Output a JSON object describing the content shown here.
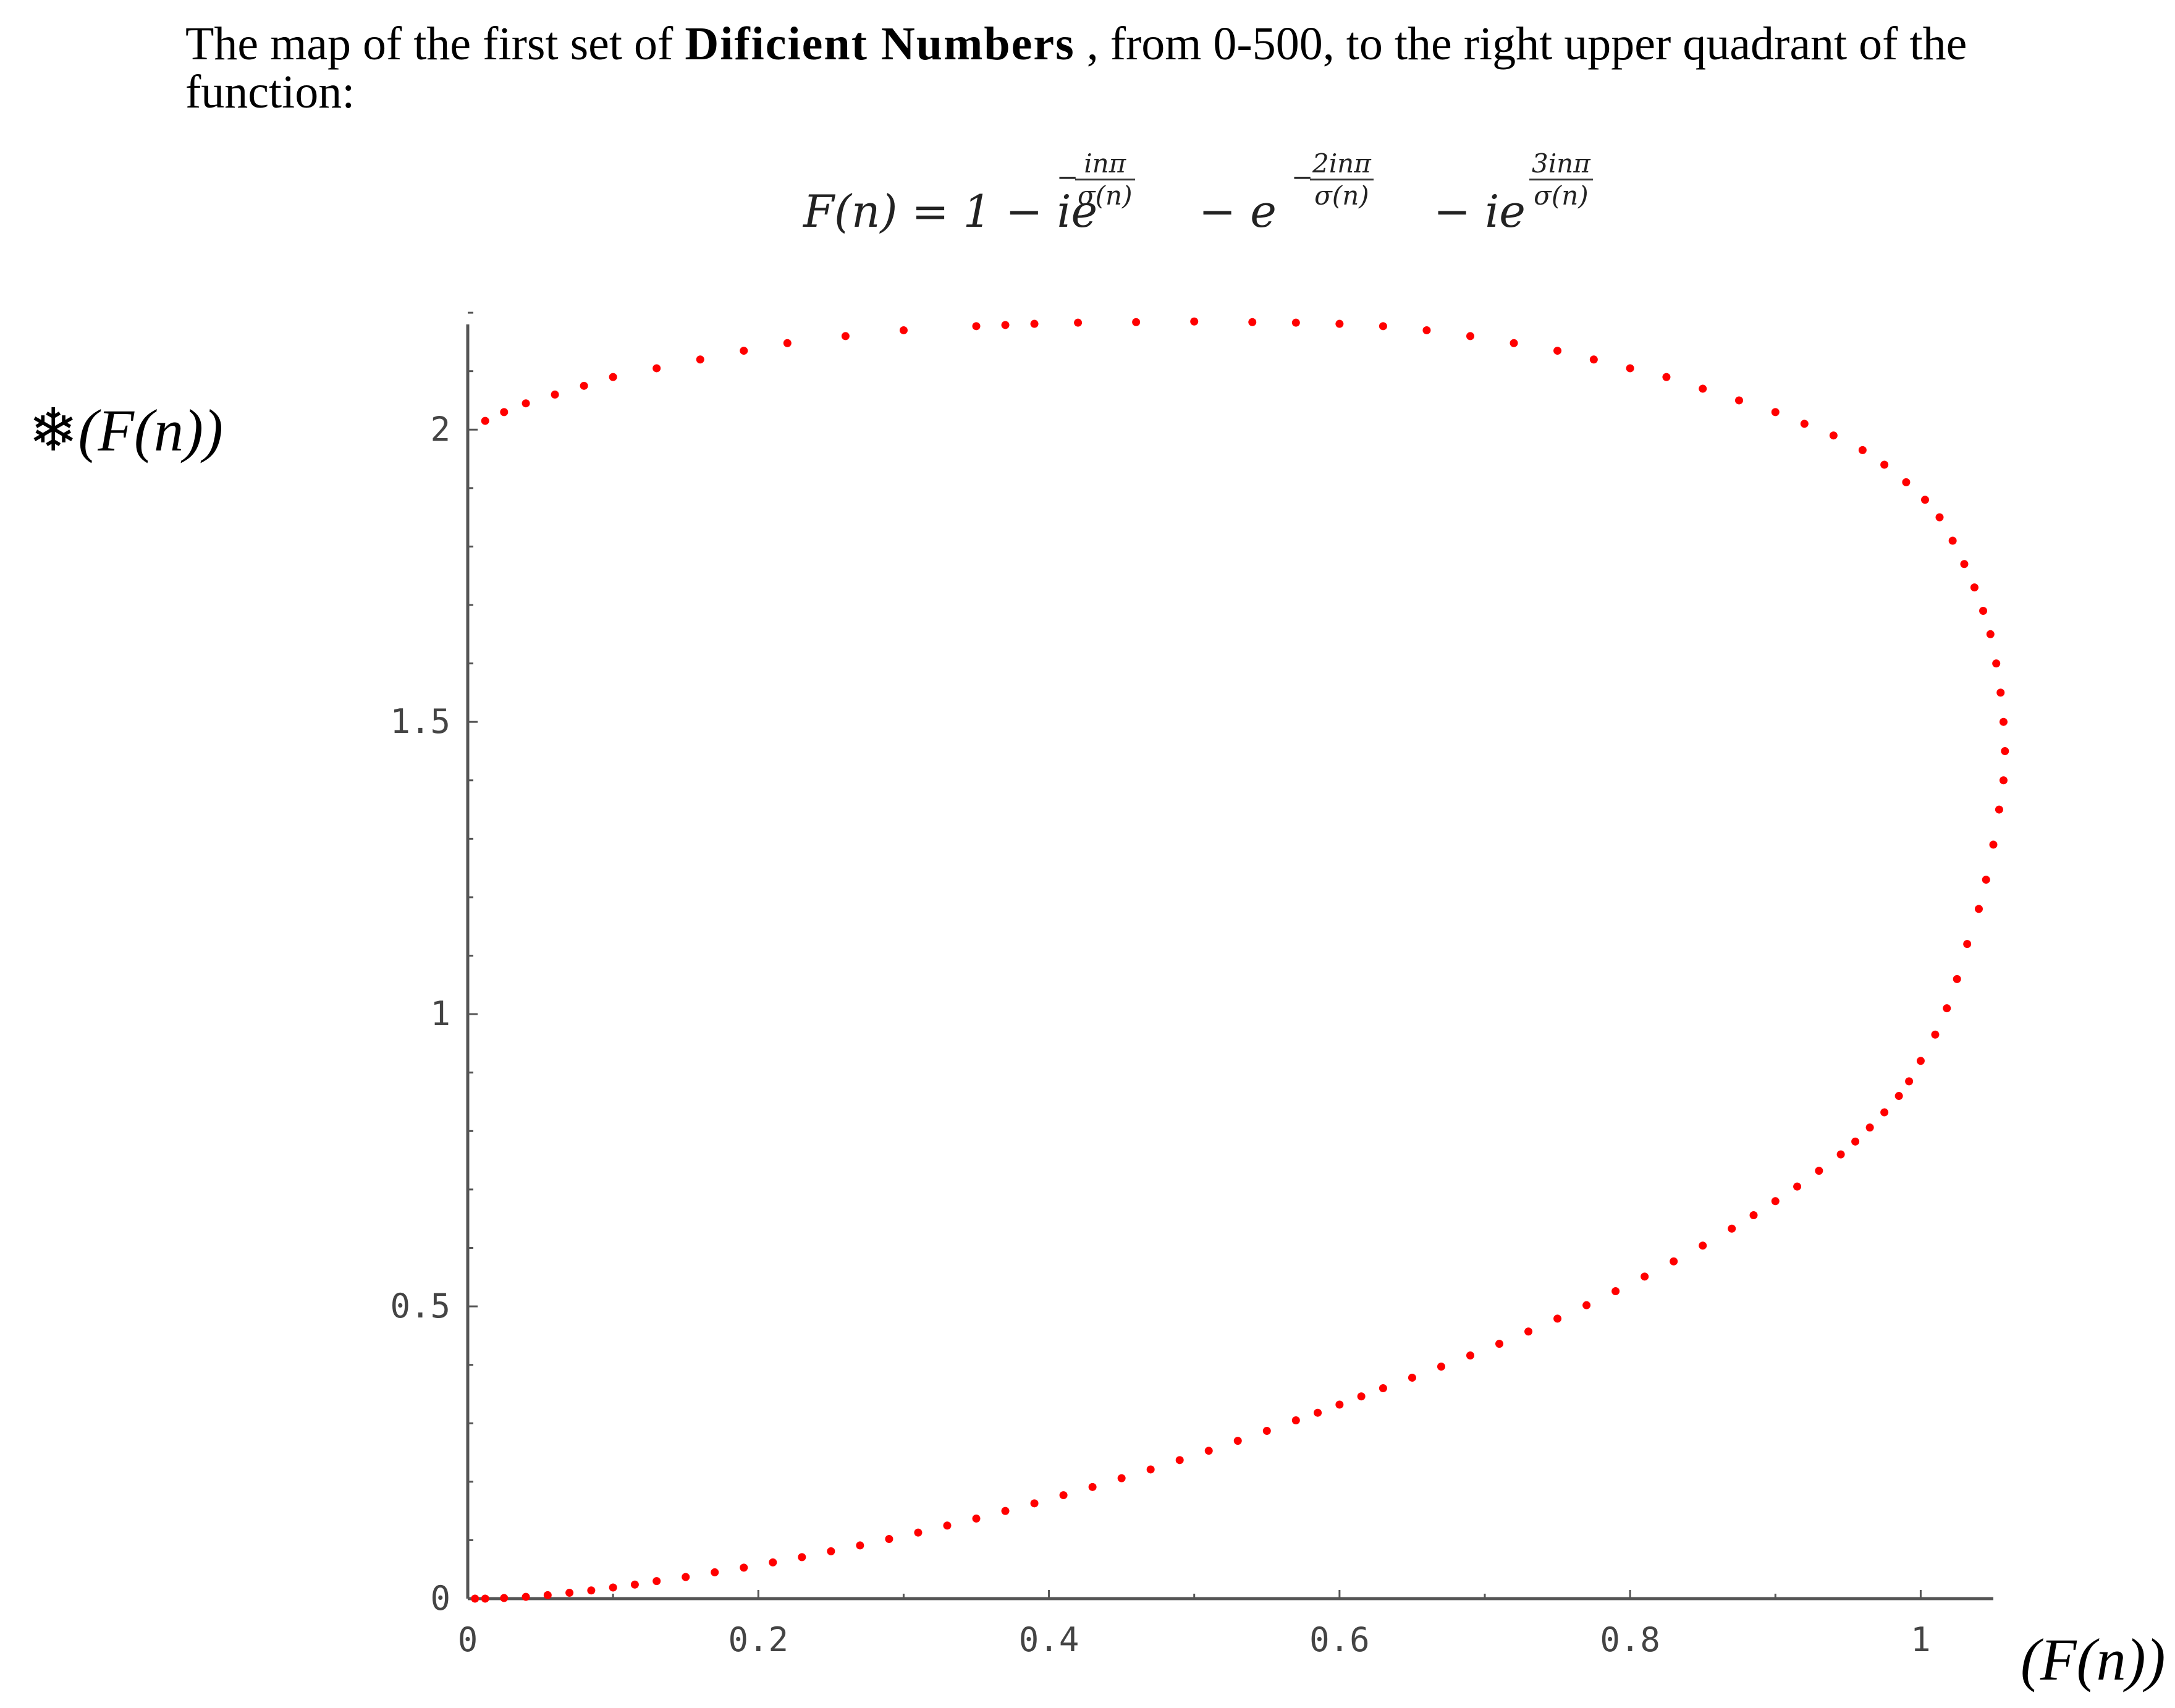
{
  "intro": {
    "prefix": "The map of the first set of ",
    "bold": "Dificient Numbers",
    "suffix": " , from 0-500, to the right upper quadrant of the",
    "line2": "function:"
  },
  "formula": {
    "lhs": "F(n) = 1 − ie",
    "minus1": "− e",
    "minus2": "− ie",
    "exp1_num": "inπ",
    "exp1_den": "σ(n)",
    "exp2_num": "2inπ",
    "exp2_den": "σ(n)",
    "exp3_num": "3inπ",
    "exp3_den": "σ(n)",
    "neg_sign": "−"
  },
  "axes": {
    "y_glyph": "❄",
    "y_label": "(F(n))",
    "x_label": "(F(n))"
  },
  "chart_data": {
    "type": "scatter",
    "title": "",
    "xlabel": "(F(n))",
    "ylabel": "❄(F(n))",
    "xlim": [
      0,
      1.05
    ],
    "ylim": [
      0,
      2.18
    ],
    "x_ticks": [
      "0",
      "0.2",
      "0.4",
      "0.6",
      "0.8",
      "1"
    ],
    "y_ticks": [
      "0",
      "0.5",
      "1",
      "1.5",
      "2"
    ],
    "marker_color": "#ff0000",
    "axis_color": "#555555",
    "grid": false,
    "series": [
      {
        "x": [
          0.005,
          0.012,
          0.025,
          0.04,
          0.055,
          0.07,
          0.085,
          0.1,
          0.115,
          0.13,
          0.15,
          0.17,
          0.19,
          0.21,
          0.23,
          0.25,
          0.27,
          0.29,
          0.31,
          0.33,
          0.35,
          0.37,
          0.39,
          0.41,
          0.43,
          0.45,
          0.47,
          0.49,
          0.51,
          0.53,
          0.55,
          0.57,
          0.585,
          0.6,
          0.615,
          0.63,
          0.65,
          0.67,
          0.69,
          0.71,
          0.73,
          0.75,
          0.77,
          0.79,
          0.81,
          0.83,
          0.85,
          0.87,
          0.885,
          0.9,
          0.915,
          0.93,
          0.945,
          0.955,
          0.965,
          0.975,
          0.985,
          0.992,
          1.0,
          1.01,
          1.018,
          1.025,
          1.032,
          1.04,
          1.045,
          1.05,
          1.054,
          1.057,
          1.058,
          1.057,
          1.055,
          1.052,
          1.048,
          1.043,
          1.037,
          1.03,
          1.022,
          1.013,
          1.003,
          0.99,
          0.975,
          0.96,
          0.94,
          0.92,
          0.9,
          0.875,
          0.85,
          0.825,
          0.8,
          0.775,
          0.75,
          0.72,
          0.69,
          0.66,
          0.63,
          0.6,
          0.57,
          0.54,
          0.5,
          0.46,
          0.42,
          0.39,
          0.37,
          0.35,
          0.3,
          0.26,
          0.22,
          0.19,
          0.16,
          0.13,
          0.1,
          0.08,
          0.06,
          0.04,
          0.025,
          0.012
        ],
        "y": [
          0.0,
          0.0,
          0.001,
          0.003,
          0.006,
          0.01,
          0.014,
          0.019,
          0.024,
          0.03,
          0.037,
          0.045,
          0.053,
          0.062,
          0.071,
          0.081,
          0.091,
          0.102,
          0.113,
          0.125,
          0.137,
          0.15,
          0.163,
          0.177,
          0.191,
          0.206,
          0.221,
          0.237,
          0.253,
          0.27,
          0.287,
          0.305,
          0.318,
          0.332,
          0.346,
          0.36,
          0.378,
          0.397,
          0.416,
          0.436,
          0.457,
          0.479,
          0.502,
          0.526,
          0.551,
          0.577,
          0.604,
          0.633,
          0.656,
          0.68,
          0.705,
          0.732,
          0.76,
          0.782,
          0.806,
          0.832,
          0.86,
          0.885,
          0.92,
          0.965,
          1.01,
          1.06,
          1.12,
          1.18,
          1.23,
          1.29,
          1.35,
          1.4,
          1.45,
          1.5,
          1.55,
          1.6,
          1.65,
          1.69,
          1.73,
          1.77,
          1.81,
          1.85,
          1.88,
          1.91,
          1.94,
          1.965,
          1.99,
          2.01,
          2.03,
          2.05,
          2.07,
          2.09,
          2.105,
          2.12,
          2.135,
          2.148,
          2.16,
          2.17,
          2.177,
          2.181,
          2.183,
          2.184,
          2.185,
          2.184,
          2.183,
          2.181,
          2.179,
          2.177,
          2.17,
          2.16,
          2.148,
          2.135,
          2.12,
          2.105,
          2.09,
          2.075,
          2.06,
          2.045,
          2.03,
          2.015
        ]
      }
    ]
  }
}
